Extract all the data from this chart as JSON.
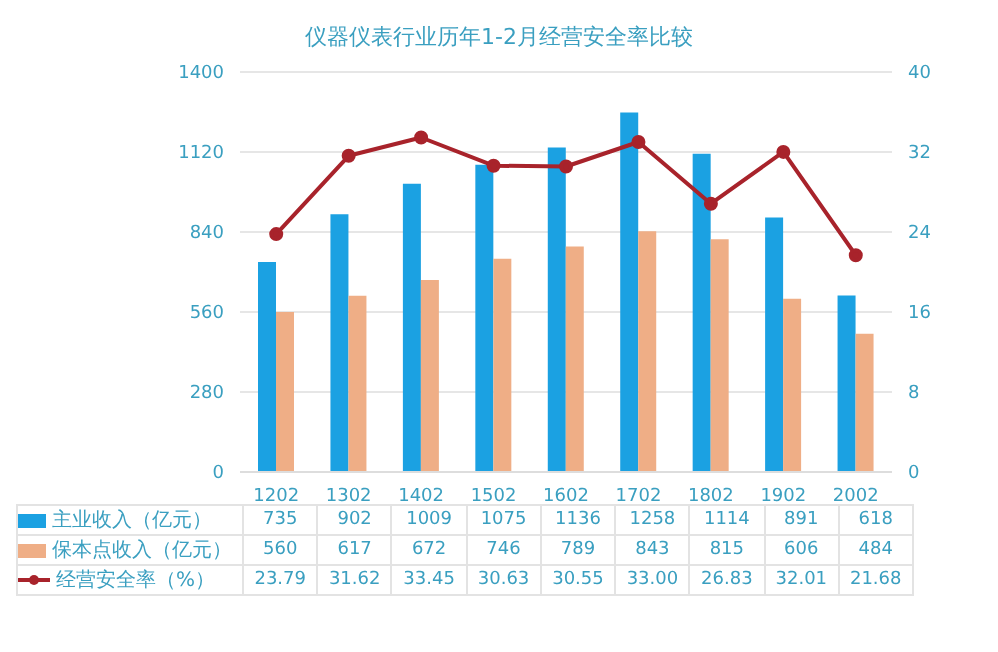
{
  "chart_data": {
    "type": "bar",
    "title": "仪器仪表行业历年1-2月经营安全率比较",
    "categories": [
      "1202",
      "1302",
      "1402",
      "1502",
      "1602",
      "1702",
      "1802",
      "1902",
      "2002"
    ],
    "series": [
      {
        "name": "主业收入（亿元）",
        "color": "#1ba1e2",
        "values": [
          735,
          902,
          1009,
          1075,
          1136,
          1258,
          1114,
          891,
          618
        ]
      },
      {
        "name": "保本点收入（亿元）",
        "color": "#efae86",
        "values": [
          560,
          617,
          672,
          746,
          789,
          843,
          815,
          606,
          484
        ]
      },
      {
        "name": "经营安全率（%）",
        "type": "line",
        "axis": "y2",
        "color": "#a8232b",
        "values": [
          23.79,
          31.62,
          33.45,
          30.63,
          30.55,
          33.0,
          26.83,
          32.01,
          21.68
        ],
        "value_labels": [
          "23.79",
          "31.62",
          "33.45",
          "30.63",
          "30.55",
          "33.00",
          "26.83",
          "32.01",
          "21.68"
        ]
      }
    ],
    "ylim": [
      0,
      1400
    ],
    "yticks": [
      0,
      280,
      560,
      840,
      1120,
      1400
    ],
    "y2lim": [
      0,
      40
    ],
    "y2ticks": [
      0,
      8,
      16,
      24,
      32,
      40
    ],
    "grid": "y",
    "legend": "bottom",
    "marker": "circle",
    "data_labels": true
  }
}
